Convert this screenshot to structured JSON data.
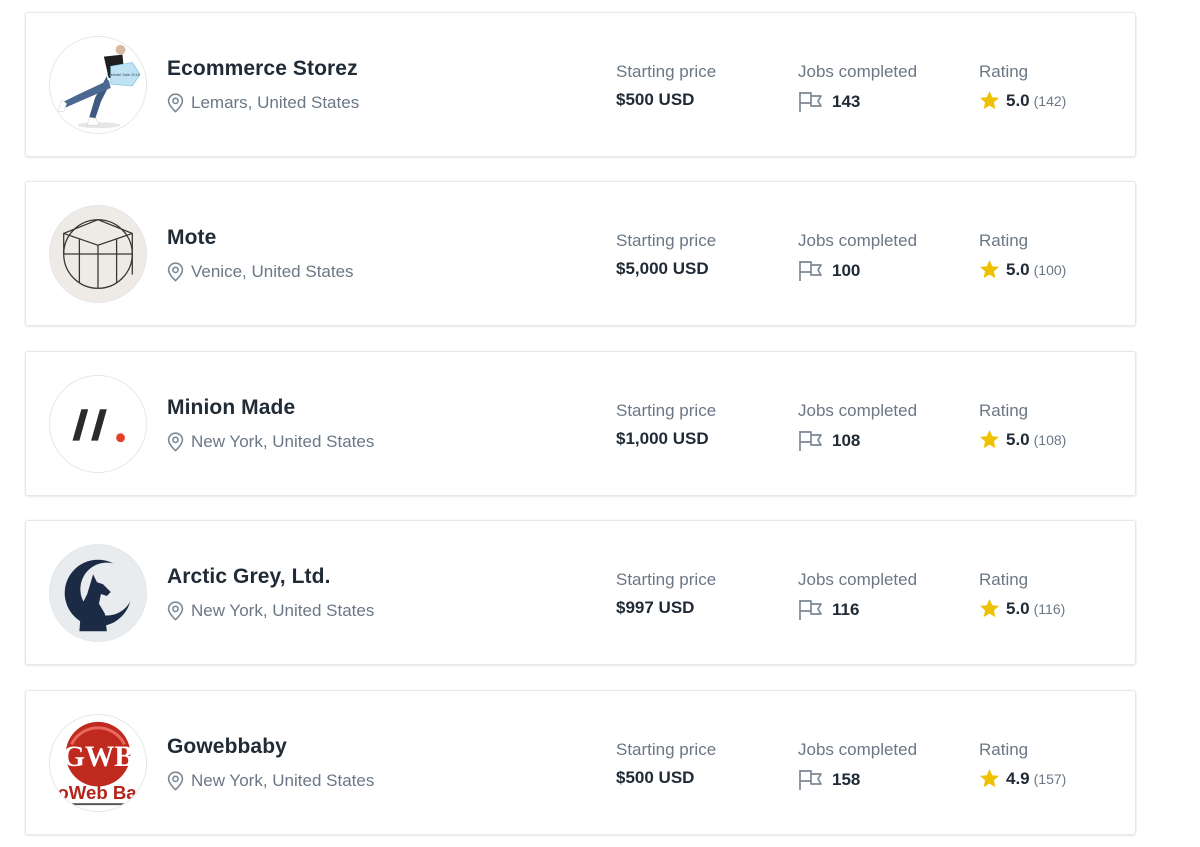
{
  "partners": [
    {
      "name": "Ecommerce Storez",
      "location": "Lemars, United States",
      "price_label": "Starting price",
      "price": "$500 USD",
      "jobs_label": "Jobs completed",
      "jobs": "143",
      "rating_label": "Rating",
      "rating": "5.0",
      "rating_count": "(142)",
      "avatar_icon": "person-holding-website-sign-icon",
      "avatar_sign_text": "Website Sale 2016"
    },
    {
      "name": "Mote",
      "location": "Venice, United States",
      "price_label": "Starting price",
      "price": "$5,000 USD",
      "jobs_label": "Jobs completed",
      "jobs": "100",
      "rating_label": "Rating",
      "rating": "5.0",
      "rating_count": "(100)",
      "avatar_icon": "mote-cube-logo-icon"
    },
    {
      "name": "Minion Made",
      "location": "New York, United States",
      "price_label": "Starting price",
      "price": "$1,000 USD",
      "jobs_label": "Jobs completed",
      "jobs": "108",
      "rating_label": "Rating",
      "rating": "5.0",
      "rating_count": "(108)",
      "avatar_icon": "minion-made-slashes-logo-icon"
    },
    {
      "name": "Arctic Grey, Ltd.",
      "location": "New York, United States",
      "price_label": "Starting price",
      "price": "$997 USD",
      "jobs_label": "Jobs completed",
      "jobs": "116",
      "rating_label": "Rating",
      "rating": "5.0",
      "rating_count": "(116)",
      "avatar_icon": "howling-wolf-moon-logo-icon"
    },
    {
      "name": "Gowebbaby",
      "location": "New York, United States",
      "price_label": "Starting price",
      "price": "$500 USD",
      "jobs_label": "Jobs completed",
      "jobs": "158",
      "rating_label": "Rating",
      "rating": "4.9",
      "rating_count": "(157)",
      "avatar_icon": "gowebbaby-gwb-logo-icon",
      "avatar_logo_text": "oWeb Ba"
    }
  ],
  "colors": {
    "text": "#212b36",
    "muted": "#6b7785",
    "star": "#eec200",
    "accent_red": "#e3402a",
    "wolf_navy": "#1c2b45"
  }
}
